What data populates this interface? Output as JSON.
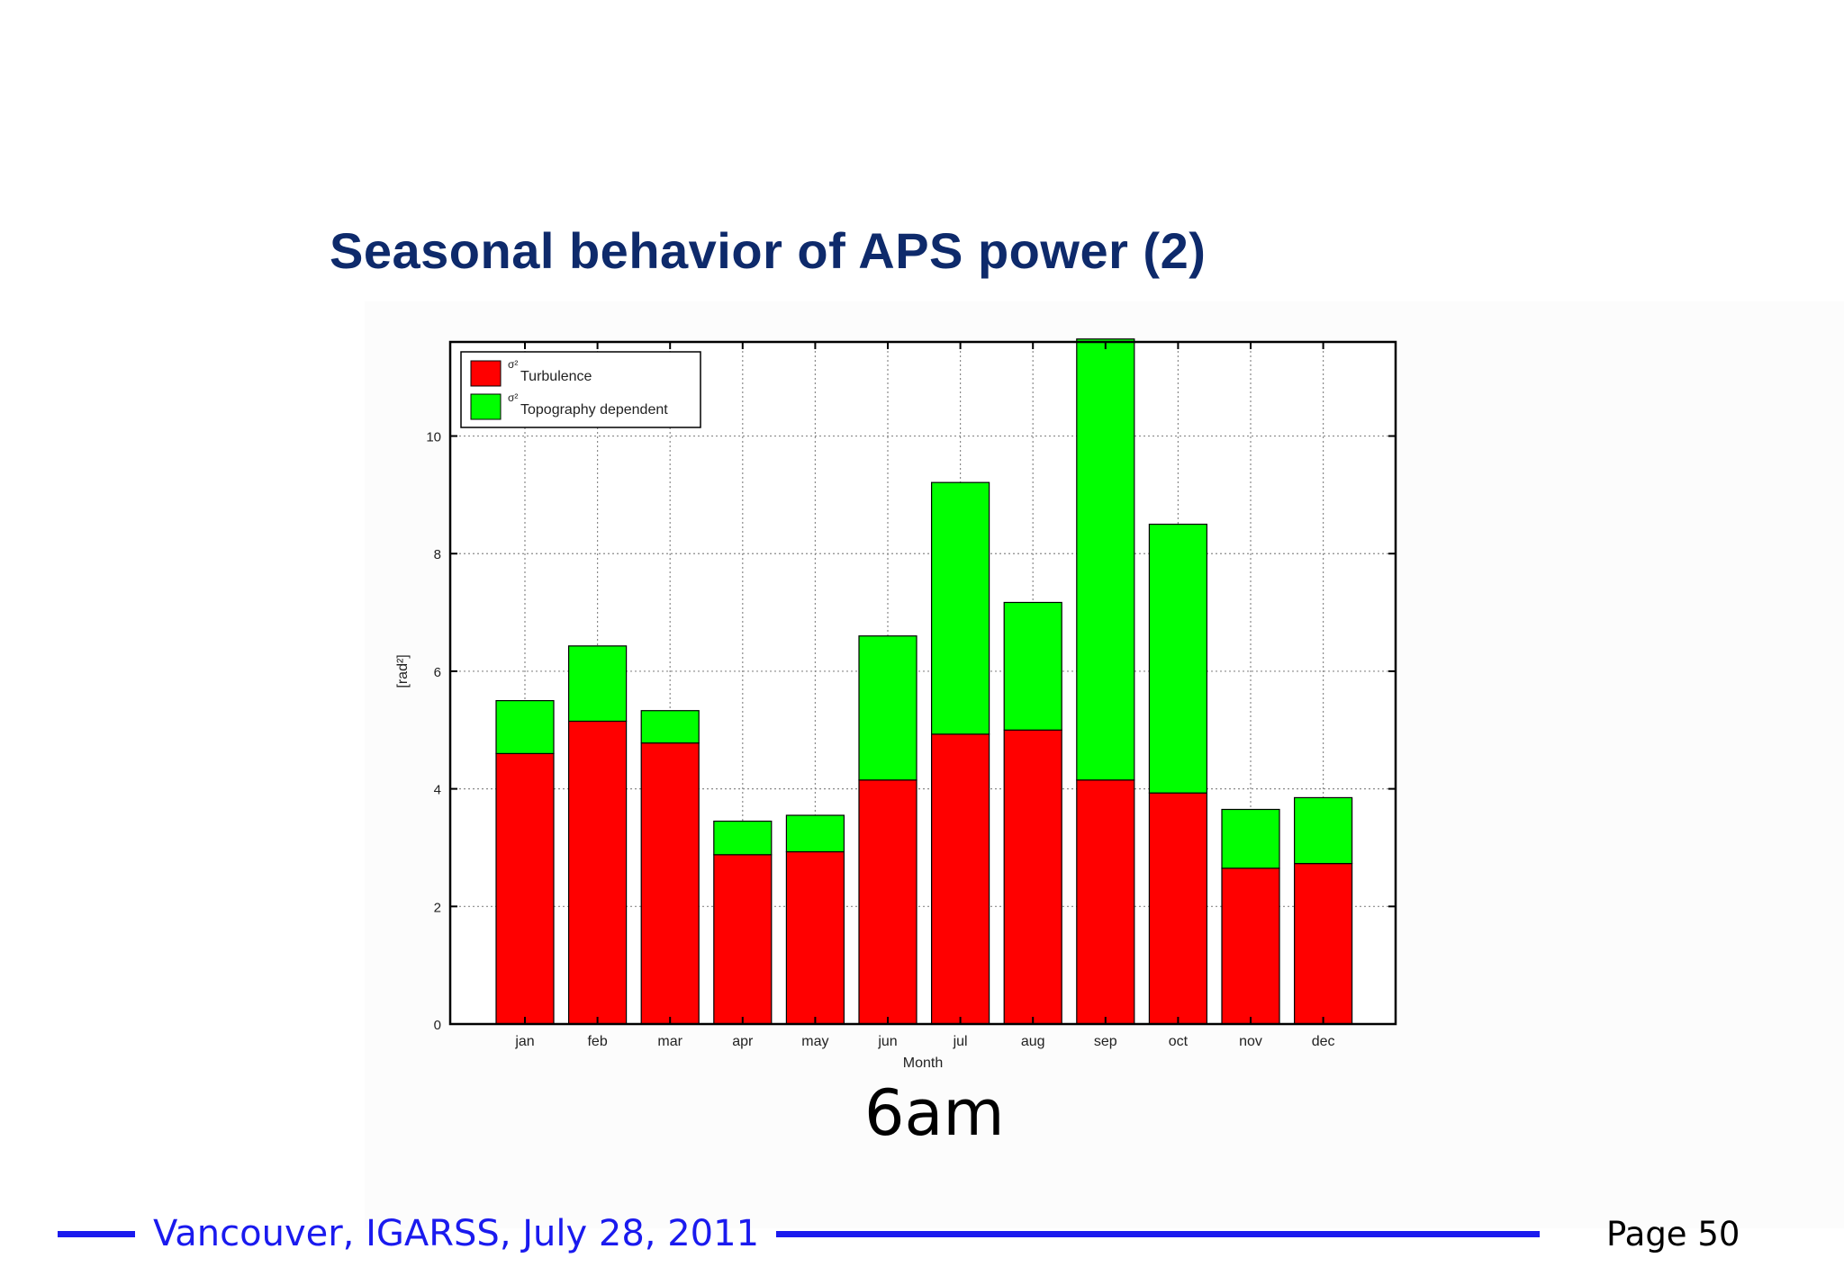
{
  "slide": {
    "title": "Seasonal behavior of APS power (2)",
    "caption": "6am",
    "footer": "Vancouver, IGARSS, July 28, 2011",
    "page": "Page 50"
  },
  "colors": {
    "title": "#0e2a6b",
    "footer": "#1a1aee",
    "turbulence": "#ff0000",
    "topography": "#00ff00"
  },
  "chart_data": {
    "type": "bar",
    "stacked": true,
    "categories": [
      "jan",
      "feb",
      "mar",
      "apr",
      "may",
      "jun",
      "jul",
      "aug",
      "sep",
      "oct",
      "nov",
      "dec"
    ],
    "series": [
      {
        "name": "Turbulence",
        "color": "#ff0000",
        "values": [
          4.6,
          5.15,
          4.78,
          2.88,
          2.93,
          4.15,
          4.93,
          5.0,
          4.15,
          3.93,
          2.65,
          2.73
        ]
      },
      {
        "name": "Topography dependent",
        "color": "#00ff00",
        "values": [
          0.9,
          1.28,
          0.55,
          0.57,
          0.62,
          2.45,
          4.28,
          2.17,
          7.5,
          4.57,
          1.0,
          1.12
        ]
      }
    ],
    "legend_symbols": [
      "σ²",
      "σ²"
    ],
    "xlabel": "Month",
    "ylabel": "[rad²]",
    "ylim": [
      0,
      11.6
    ],
    "yticks": [
      0,
      2,
      4,
      6,
      8,
      10
    ],
    "grid": true,
    "legend": "top-left"
  }
}
